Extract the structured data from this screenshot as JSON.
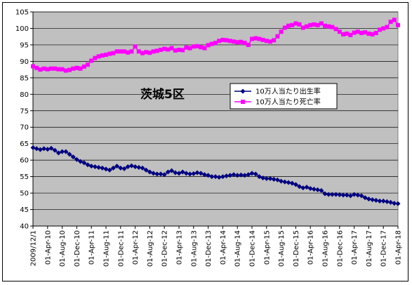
{
  "chart_data": {
    "type": "line",
    "title": "茨城5区",
    "xlabel": "",
    "ylabel": "",
    "ylim": [
      40,
      105
    ],
    "yticks": [
      40,
      45,
      50,
      55,
      60,
      65,
      70,
      75,
      80,
      85,
      90,
      95,
      100,
      105
    ],
    "grid": "y-major",
    "legend_position": "center-right",
    "x": [
      "2009/12/01",
      "2010/01/01",
      "2010/02/01",
      "2010/03/01",
      "2010/04/01",
      "2010/05/01",
      "2010/06/01",
      "2010/07/01",
      "2010/08/01",
      "2010/09/01",
      "2010/10/01",
      "2010/11/01",
      "2010/12/01",
      "2011/01/01",
      "2011/02/01",
      "2011/03/01",
      "2011/04/01",
      "2011/05/01",
      "2011/06/01",
      "2011/07/01",
      "2011/08/01",
      "2011/09/01",
      "2011/10/01",
      "2011/11/01",
      "2011/12/01",
      "2012/01/01",
      "2012/02/01",
      "2012/03/01",
      "2012/04/01",
      "2012/05/01",
      "2012/06/01",
      "2012/07/01",
      "2012/08/01",
      "2012/09/01",
      "2012/10/01",
      "2012/11/01",
      "2012/12/01",
      "2013/01/01",
      "2013/02/01",
      "2013/03/01",
      "2013/04/01",
      "2013/05/01",
      "2013/06/01",
      "2013/07/01",
      "2013/08/01",
      "2013/09/01",
      "2013/10/01",
      "2013/11/01",
      "2013/12/01",
      "2014/01/01",
      "2014/02/01",
      "2014/03/01",
      "2014/04/01",
      "2014/05/01",
      "2014/06/01",
      "2014/07/01",
      "2014/08/01",
      "2014/09/01",
      "2014/10/01",
      "2014/11/01",
      "2014/12/01",
      "2015/01/01",
      "2015/02/01",
      "2015/03/01",
      "2015/04/01",
      "2015/05/01",
      "2015/06/01",
      "2015/07/01",
      "2015/08/01",
      "2015/09/01",
      "2015/10/01",
      "2015/11/01",
      "2015/12/01",
      "2016/01/01",
      "2016/02/01",
      "2016/03/01",
      "2016/04/01",
      "2016/05/01",
      "2016/06/01",
      "2016/07/01",
      "2016/08/01",
      "2016/09/01",
      "2016/10/01",
      "2016/11/01",
      "2016/12/01",
      "2017/01/01",
      "2017/02/01",
      "2017/03/01",
      "2017/04/01",
      "2017/05/01",
      "2017/06/01",
      "2017/07/01",
      "2017/08/01",
      "2017/09/01",
      "2017/10/01",
      "2017/11/01",
      "2017/12/01",
      "2018/01/01",
      "2018/02/01",
      "2018/03/01",
      "2018/04/01"
    ],
    "x_tick_labels": [
      "2009/12/1",
      "01-Apr-10",
      "01-Aug-10",
      "01-Dec-10",
      "01-Apr-11",
      "01-Aug-11",
      "01-Dec-11",
      "01-Apr-12",
      "01-Aug-12",
      "01-Dec-12",
      "01-Apr-13",
      "01-Aug-13",
      "01-Dec-13",
      "01-Apr-14",
      "01-Aug-14",
      "01-Dec-14",
      "01-Apr-15",
      "01-Aug-15",
      "01-Dec-15",
      "01-Apr-16",
      "01-Aug-16",
      "01-Dec-16",
      "01-Apr-17",
      "01-Aug-17",
      "01-Dec-17",
      "01-Apr-18"
    ],
    "series": [
      {
        "name": "10万人当たり出生率",
        "color": "#000080",
        "marker": "diamond",
        "values": [
          63.8,
          63.5,
          63.2,
          63.5,
          63.3,
          63.6,
          63.0,
          62.2,
          62.6,
          62.6,
          61.8,
          61.0,
          60.2,
          59.6,
          59.2,
          58.6,
          58.2,
          58.0,
          57.8,
          57.6,
          57.3,
          57.0,
          57.6,
          58.2,
          57.6,
          57.4,
          58.0,
          58.3,
          58.0,
          57.8,
          57.6,
          57.0,
          56.4,
          56.0,
          55.8,
          55.8,
          55.6,
          56.4,
          56.8,
          56.2,
          56.0,
          56.4,
          56.0,
          55.8,
          55.9,
          56.2,
          56.0,
          55.6,
          55.4,
          55.0,
          55.0,
          54.8,
          55.0,
          55.2,
          55.4,
          55.6,
          55.4,
          55.5,
          55.4,
          55.6,
          56.0,
          55.8,
          55.0,
          54.6,
          54.4,
          54.4,
          54.2,
          54.0,
          53.6,
          53.4,
          53.2,
          53.0,
          52.6,
          52.0,
          51.6,
          51.8,
          51.4,
          51.2,
          51.0,
          50.8,
          49.8,
          49.6,
          49.6,
          49.6,
          49.5,
          49.4,
          49.4,
          49.2,
          49.6,
          49.4,
          49.2,
          48.6,
          48.2,
          48.0,
          47.8,
          47.6,
          47.6,
          47.4,
          47.2,
          46.9,
          46.8
        ]
      },
      {
        "name": "10万人当たり死亡率",
        "color": "#ff00ff",
        "marker": "square",
        "values": [
          88.5,
          88.0,
          87.5,
          87.8,
          87.6,
          87.8,
          87.8,
          87.6,
          87.6,
          87.2,
          87.4,
          87.8,
          88.0,
          87.8,
          88.4,
          89.0,
          90.2,
          91.0,
          91.5,
          91.8,
          92.0,
          92.3,
          92.5,
          93.0,
          93.0,
          93.0,
          92.7,
          93.0,
          94.5,
          93.0,
          92.5,
          92.8,
          92.6,
          93.0,
          93.2,
          93.5,
          93.8,
          93.6,
          94.0,
          93.3,
          93.5,
          93.4,
          94.2,
          94.0,
          94.5,
          94.6,
          94.3,
          94.0,
          94.9,
          95.3,
          95.6,
          96.2,
          96.5,
          96.4,
          96.2,
          96.0,
          95.8,
          95.9,
          95.6,
          95.0,
          96.8,
          97.0,
          96.8,
          96.5,
          96.2,
          96.0,
          96.4,
          97.6,
          99.0,
          100.2,
          100.8,
          101.0,
          101.5,
          101.2,
          100.2,
          100.6,
          101.0,
          101.2,
          101.0,
          101.5,
          100.8,
          100.6,
          100.4,
          99.8,
          99.0,
          98.2,
          98.4,
          98.0,
          98.7,
          99.0,
          98.6,
          98.8,
          98.4,
          98.2,
          98.6,
          99.6,
          100.0,
          100.4,
          102.0,
          102.6,
          101.0
        ]
      }
    ]
  }
}
